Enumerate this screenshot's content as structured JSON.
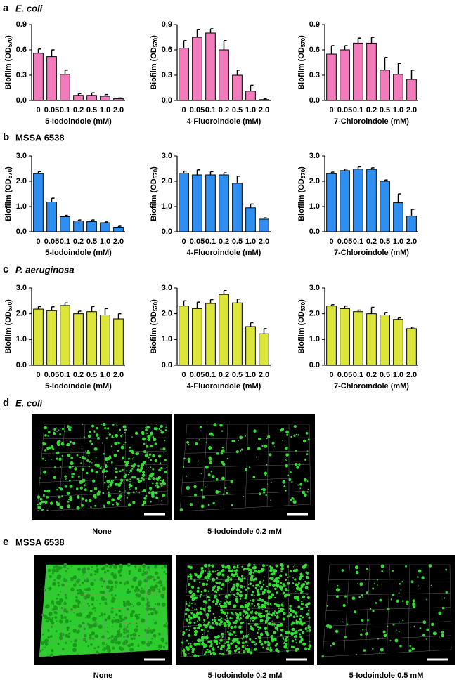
{
  "panels": [
    {
      "letter": "a",
      "title": "E. coli"
    },
    {
      "letter": "b",
      "title": "MSSA 6538"
    },
    {
      "letter": "c",
      "title": "P. aeruginosa"
    }
  ],
  "images": [
    {
      "letter": "d",
      "title": "E. coli",
      "captions": [
        "None",
        "5-Iodoindole 0.2 mM"
      ]
    },
    {
      "letter": "e",
      "title": "MSSA 6538",
      "captions": [
        "None",
        "5-Iodoindole 0.2 mM",
        "5-Iodoindole 0.5 mM"
      ]
    }
  ],
  "chart_data": [
    {
      "type": "bar",
      "xlabel": "5-Iodoindole (mM)",
      "ylabel": "Biofilm (OD",
      "ylabel_sub": "570",
      "ylabel_end": ")",
      "categories": [
        "0",
        "0.05",
        "0.1",
        "0.2",
        "0.5",
        "1.0",
        "2.0"
      ],
      "values": [
        0.56,
        0.52,
        0.31,
        0.06,
        0.06,
        0.05,
        0.02
      ],
      "errors": [
        0.05,
        0.08,
        0.05,
        0.02,
        0.03,
        0.02,
        0.01
      ],
      "color": "#f27cbb",
      "ylim": [
        0,
        0.9
      ],
      "yticks": [
        {
          "value": 0,
          "label": "0.0"
        },
        0.3,
        0.6,
        0.9
      ]
    },
    {
      "type": "bar",
      "xlabel": "4-Fluoroindole (mM)",
      "ylabel": "Biofilm (OD",
      "ylabel_sub": "570",
      "ylabel_end": ")",
      "categories": [
        "0",
        "0.05",
        "0.1",
        "0.2",
        "0.5",
        "1.0",
        "2.0"
      ],
      "values": [
        0.62,
        0.75,
        0.8,
        0.6,
        0.3,
        0.11,
        0.01
      ],
      "errors": [
        0.09,
        0.09,
        0.05,
        0.11,
        0.06,
        0.07,
        0.01
      ],
      "color": "#f27cbb",
      "ylim": [
        0,
        0.9
      ],
      "yticks": [
        {
          "value": 0,
          "label": "0.0"
        },
        0.3,
        0.6,
        0.9
      ]
    },
    {
      "type": "bar",
      "xlabel": "7-Chloroindole (mM)",
      "ylabel": "Biofilm (OD",
      "ylabel_sub": "570",
      "ylabel_end": ")",
      "categories": [
        "0",
        "0.05",
        "0.1",
        "0.2",
        "0.5",
        "1.0",
        "2.0"
      ],
      "values": [
        0.55,
        0.6,
        0.68,
        0.68,
        0.36,
        0.31,
        0.25
      ],
      "errors": [
        0.1,
        0.05,
        0.06,
        0.07,
        0.15,
        0.13,
        0.11
      ],
      "color": "#f27cbb",
      "ylim": [
        0,
        0.9
      ],
      "yticks": [
        {
          "value": 0,
          "label": "0.0"
        },
        0.3,
        0.6,
        0.9
      ]
    },
    {
      "type": "bar",
      "xlabel": "5-Iodoindole (mM)",
      "ylabel": "Biofilm (OD",
      "ylabel_sub": "570",
      "ylabel_end": ")",
      "categories": [
        "0",
        "0.05",
        "0.1",
        "0.2",
        "0.5",
        "1.0",
        "2.0"
      ],
      "values": [
        2.3,
        1.18,
        0.6,
        0.43,
        0.4,
        0.36,
        0.18
      ],
      "errors": [
        0.08,
        0.15,
        0.05,
        0.04,
        0.07,
        0.03,
        0.04
      ],
      "color": "#2f8ff0",
      "ylim": [
        0,
        3
      ],
      "yticks": [
        {
          "value": 0,
          "label": "0.0"
        },
        {
          "value": 1,
          "label": "1.0"
        },
        {
          "value": 2,
          "label": "2.0"
        },
        {
          "value": 3,
          "label": "3.0"
        }
      ]
    },
    {
      "type": "bar",
      "xlabel": "4-Fluoroindole (mM)",
      "ylabel": "Biofilm (OD",
      "ylabel_sub": "570",
      "ylabel_end": ")",
      "categories": [
        "0",
        "0.05",
        "0.1",
        "0.2",
        "0.5",
        "1.0",
        "2.0"
      ],
      "values": [
        2.32,
        2.25,
        2.25,
        2.25,
        1.92,
        0.95,
        0.5
      ],
      "errors": [
        0.08,
        0.2,
        0.13,
        0.08,
        0.28,
        0.15,
        0.05
      ],
      "color": "#2f8ff0",
      "ylim": [
        0,
        3
      ],
      "yticks": [
        {
          "value": 0,
          "label": "0.0"
        },
        {
          "value": 1,
          "label": "1.0"
        },
        {
          "value": 2,
          "label": "2.0"
        },
        {
          "value": 3,
          "label": "3.0"
        }
      ]
    },
    {
      "type": "bar",
      "xlabel": "7-Chloroindole (mM)",
      "ylabel": "Biofilm (OD",
      "ylabel_sub": "570",
      "ylabel_end": ")",
      "categories": [
        "0",
        "0.05",
        "0.1",
        "0.2",
        "0.5",
        "1.0",
        "2.0"
      ],
      "values": [
        2.3,
        2.42,
        2.48,
        2.47,
        2.0,
        1.15,
        0.62
      ],
      "errors": [
        0.06,
        0.06,
        0.09,
        0.06,
        0.05,
        0.35,
        0.27
      ],
      "color": "#2f8ff0",
      "ylim": [
        0,
        3
      ],
      "yticks": [
        {
          "value": 0,
          "label": "0.0"
        },
        {
          "value": 1,
          "label": "1.0"
        },
        {
          "value": 2,
          "label": "2.0"
        },
        {
          "value": 3,
          "label": "3.0"
        }
      ]
    },
    {
      "type": "bar",
      "xlabel": "5-Iodoindole (mM)",
      "ylabel": "Biofilm (OD",
      "ylabel_sub": "570",
      "ylabel_end": ")",
      "categories": [
        "0",
        "0.05",
        "0.1",
        "0.2",
        "0.5",
        "1.0",
        "2.0"
      ],
      "values": [
        2.18,
        2.12,
        2.32,
        2.0,
        2.08,
        1.95,
        1.8
      ],
      "errors": [
        0.1,
        0.15,
        0.1,
        0.1,
        0.2,
        0.25,
        0.2
      ],
      "color": "#dbe53a",
      "ylim": [
        0,
        3
      ],
      "yticks": [
        {
          "value": 0,
          "label": "0.0"
        },
        {
          "value": 1,
          "label": "1.0"
        },
        {
          "value": 2,
          "label": "2.0"
        },
        {
          "value": 3,
          "label": "3.0"
        }
      ]
    },
    {
      "type": "bar",
      "xlabel": "4-Fluoroindole (mM)",
      "ylabel": "Biofilm (OD",
      "ylabel_sub": "570",
      "ylabel_end": ")",
      "categories": [
        "0",
        "0.05",
        "0.1",
        "0.2",
        "0.5",
        "1.0",
        "2.0"
      ],
      "values": [
        2.3,
        2.2,
        2.4,
        2.75,
        2.42,
        1.5,
        1.22
      ],
      "errors": [
        0.2,
        0.25,
        0.15,
        0.15,
        0.15,
        0.15,
        0.2
      ],
      "color": "#dbe53a",
      "ylim": [
        0,
        3
      ],
      "yticks": [
        {
          "value": 0,
          "label": "0.0"
        },
        {
          "value": 1,
          "label": "1.0"
        },
        {
          "value": 2,
          "label": "2.0"
        },
        {
          "value": 3,
          "label": "3.0"
        }
      ]
    },
    {
      "type": "bar",
      "xlabel": "7-Chloroindole (mM)",
      "ylabel": "Biofilm (OD",
      "ylabel_sub": "570",
      "ylabel_end": ")",
      "categories": [
        "0",
        "0.05",
        "0.1",
        "0.2",
        "0.5",
        "1.0",
        "2.0"
      ],
      "values": [
        2.3,
        2.2,
        2.08,
        2.0,
        1.95,
        1.78,
        1.42
      ],
      "errors": [
        0.05,
        0.1,
        0.06,
        0.25,
        0.1,
        0.06,
        0.06
      ],
      "color": "#dbe53a",
      "ylim": [
        0,
        3
      ],
      "yticks": [
        {
          "value": 0,
          "label": "0.0"
        },
        {
          "value": 1,
          "label": "1.0"
        },
        {
          "value": 2,
          "label": "2.0"
        },
        {
          "value": 3,
          "label": "3.0"
        }
      ]
    }
  ]
}
